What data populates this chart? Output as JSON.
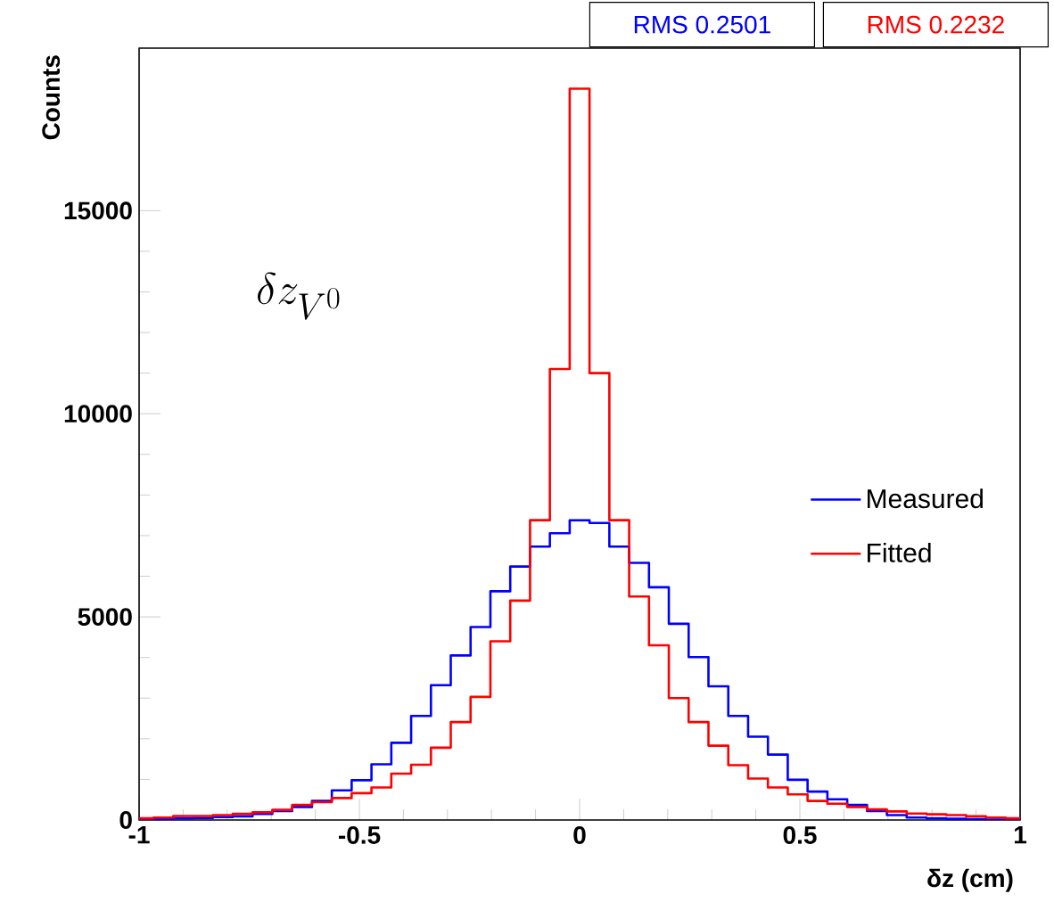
{
  "chart_data": {
    "type": "histogram",
    "xlabel": "δz (cm)",
    "ylabel": "Counts",
    "bins": [
      -1,
      -0.9675,
      -0.9225,
      -0.8775,
      -0.8325,
      -0.7875,
      -0.7425,
      -0.6975,
      -0.6525,
      -0.6075,
      -0.5625,
      -0.5175,
      -0.4725,
      -0.4275,
      -0.3825,
      -0.3375,
      -0.2925,
      -0.2475,
      -0.2025,
      -0.1575,
      -0.1125,
      -0.0675,
      -0.0225,
      0.0225,
      0.0675,
      0.1125,
      0.1575,
      0.2025,
      0.2475,
      0.2925,
      0.3375,
      0.3825,
      0.4275,
      0.4725,
      0.5175,
      0.5625,
      0.6075,
      0.6525,
      0.6975,
      0.7425,
      0.7875,
      0.8325,
      0.8775,
      0.9225,
      0.9675,
      1
    ],
    "series": [
      {
        "name": "Measured",
        "color": "#0000ff",
        "values": [
          20,
          30,
          40,
          50,
          70,
          90,
          150,
          220,
          320,
          470,
          730,
          980,
          1370,
          1900,
          2560,
          3320,
          4050,
          4750,
          5630,
          6240,
          6730,
          7060,
          7380,
          7310,
          6730,
          6330,
          5730,
          4830,
          4010,
          3290,
          2560,
          2050,
          1610,
          990,
          700,
          510,
          370,
          220,
          120,
          60,
          40,
          30,
          20,
          10,
          10
        ]
      },
      {
        "name": "Fitted",
        "color": "#ff0000",
        "values": [
          40,
          60,
          100,
          100,
          120,
          150,
          190,
          250,
          370,
          440,
          540,
          660,
          800,
          1140,
          1360,
          1780,
          2410,
          3030,
          4400,
          5400,
          7380,
          11100,
          18000,
          11000,
          7380,
          5500,
          4300,
          3000,
          2410,
          1830,
          1350,
          1020,
          800,
          630,
          470,
          400,
          320,
          260,
          210,
          160,
          140,
          120,
          90,
          60,
          40
        ]
      }
    ],
    "xlim": [
      -1,
      1
    ],
    "ylim": [
      0,
      19000
    ],
    "xticks": [
      -1,
      -0.5,
      0,
      0.5,
      1
    ],
    "yticks": [
      0,
      5000,
      10000,
      15000
    ],
    "legend": "right",
    "annotations": [
      "RMS 0.2501",
      "RMS 0.2232",
      "\\delta z_{V^0}"
    ]
  }
}
